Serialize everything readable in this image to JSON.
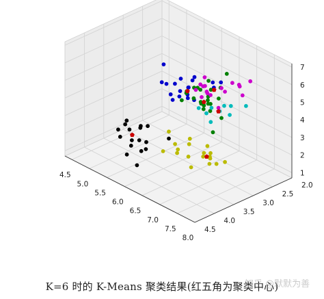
{
  "chart_data": {
    "type": "scatter",
    "projection": "3d",
    "title": "",
    "xlabel": "",
    "ylabel": "",
    "zlabel": "",
    "x_ticks": [
      "4.5",
      "5.0",
      "5.5",
      "6.0",
      "6.5",
      "7.0",
      "7.5",
      "8.0"
    ],
    "y_ticks": [
      "2.0",
      "2.5",
      "3.0",
      "3.5",
      "4.0",
      "4.5"
    ],
    "z_ticks": [
      "1",
      "2",
      "3",
      "4",
      "5",
      "6",
      "7"
    ],
    "xlim": [
      4.3,
      8.0
    ],
    "ylim": [
      2.0,
      4.5
    ],
    "zlim": [
      0.7,
      7.2
    ],
    "grid": true,
    "series": [
      {
        "color": "#000000",
        "points": [
          [
            4.4,
            3.0,
            1.3
          ],
          [
            4.6,
            3.4,
            1.4
          ],
          [
            4.7,
            3.2,
            1.3
          ],
          [
            4.8,
            3.0,
            1.4
          ],
          [
            4.9,
            3.1,
            1.5
          ],
          [
            5.0,
            3.4,
            1.5
          ],
          [
            5.0,
            3.0,
            1.6
          ],
          [
            5.1,
            3.5,
            1.4
          ],
          [
            5.2,
            3.4,
            1.4
          ],
          [
            5.4,
            3.9,
            1.3
          ],
          [
            5.4,
            3.4,
            1.5
          ],
          [
            5.5,
            3.5,
            1.3
          ],
          [
            5.7,
            3.8,
            1.7
          ],
          [
            5.8,
            4.0,
            1.2
          ],
          [
            5.1,
            3.8,
            1.9
          ],
          [
            4.8,
            3.4,
            1.9
          ],
          [
            5.3,
            3.7,
            1.5
          ],
          [
            5.6,
            3.0,
            1.5
          ]
        ]
      },
      {
        "color": "#0000cc",
        "points": [
          [
            4.9,
            2.5,
            4.5
          ],
          [
            5.0,
            2.3,
            3.3
          ],
          [
            5.1,
            2.5,
            3.0
          ],
          [
            5.2,
            2.7,
            3.9
          ],
          [
            5.5,
            2.4,
            3.7
          ],
          [
            5.5,
            2.3,
            4.0
          ],
          [
            5.6,
            2.9,
            3.6
          ],
          [
            5.7,
            2.6,
            3.5
          ],
          [
            5.8,
            2.7,
            4.1
          ],
          [
            6.0,
            2.2,
            4.0
          ],
          [
            6.1,
            2.8,
            4.0
          ],
          [
            5.6,
            2.5,
            3.9
          ],
          [
            5.8,
            2.7,
            3.9
          ],
          [
            5.7,
            2.8,
            4.1
          ],
          [
            5.5,
            2.6,
            4.4
          ],
          [
            6.0,
            2.7,
            5.1
          ],
          [
            5.4,
            3.0,
            4.5
          ],
          [
            6.2,
            2.2,
            4.5
          ],
          [
            5.9,
            3.0,
            4.2
          ],
          [
            6.3,
            2.5,
            4.9
          ]
        ]
      },
      {
        "color": "#bbbb00",
        "points": [
          [
            5.6,
            3.0,
            1.9
          ],
          [
            6.0,
            3.2,
            1.8
          ],
          [
            6.2,
            3.0,
            2.1
          ],
          [
            6.3,
            3.4,
            2.0
          ],
          [
            6.6,
            3.0,
            1.7
          ],
          [
            6.4,
            3.2,
            2.2
          ],
          [
            6.6,
            3.4,
            1.9
          ],
          [
            6.9,
            3.1,
            2.1
          ],
          [
            7.0,
            3.2,
            2.0
          ],
          [
            6.7,
            3.0,
            2.2
          ],
          [
            6.8,
            3.2,
            1.9
          ],
          [
            7.2,
            3.0,
            1.8
          ],
          [
            7.2,
            3.4,
            2.1
          ],
          [
            6.5,
            3.6,
            2.2
          ],
          [
            6.9,
            3.6,
            1.8
          ],
          [
            7.1,
            3.3,
            2.3
          ],
          [
            7.4,
            3.4,
            2.3
          ],
          [
            6.1,
            3.6,
            1.9
          ]
        ]
      },
      {
        "color": "#008000",
        "points": [
          [
            6.1,
            2.6,
            3.6
          ],
          [
            6.2,
            2.9,
            4.3
          ],
          [
            6.3,
            2.3,
            4.4
          ],
          [
            6.3,
            2.8,
            4.0
          ],
          [
            6.4,
            2.9,
            4.3
          ],
          [
            6.5,
            2.8,
            4.6
          ],
          [
            6.6,
            2.9,
            4.6
          ],
          [
            6.7,
            3.1,
            4.4
          ],
          [
            6.8,
            2.8,
            4.8
          ],
          [
            6.9,
            3.1,
            4.9
          ],
          [
            7.0,
            3.2,
            4.7
          ],
          [
            6.7,
            2.5,
            5.8
          ],
          [
            6.4,
            2.7,
            5.3
          ],
          [
            6.5,
            3.0,
            5.2
          ],
          [
            6.3,
            3.3,
            4.7
          ],
          [
            6.0,
            2.9,
            4.5
          ],
          [
            6.6,
            3.0,
            4.4
          ],
          [
            7.1,
            3.0,
            4.2
          ],
          [
            7.3,
            3.4,
            4.0
          ],
          [
            6.5,
            2.8,
            4.2
          ],
          [
            6.8,
            3.0,
            5.5
          ],
          [
            6.1,
            2.8,
            4.7
          ],
          [
            6.2,
            2.8,
            4.8
          ],
          [
            6.1,
            3.0,
            4.6
          ]
        ]
      },
      {
        "color": "#cc00cc",
        "points": [
          [
            6.3,
            2.7,
            4.9
          ],
          [
            6.4,
            2.8,
            5.6
          ],
          [
            6.5,
            3.0,
            5.5
          ],
          [
            6.7,
            3.0,
            5.2
          ],
          [
            6.8,
            3.2,
            5.9
          ],
          [
            6.9,
            3.1,
            5.4
          ],
          [
            7.2,
            3.0,
            5.8
          ],
          [
            7.2,
            3.6,
            6.1
          ],
          [
            7.4,
            2.8,
            6.1
          ],
          [
            7.6,
            3.0,
            6.6
          ],
          [
            7.7,
            2.8,
            6.7
          ],
          [
            7.9,
            3.8,
            6.4
          ],
          [
            7.7,
            3.0,
            6.1
          ],
          [
            7.3,
            2.9,
            6.3
          ],
          [
            6.9,
            3.2,
            5.7
          ],
          [
            7.1,
            3.0,
            5.9
          ],
          [
            6.7,
            3.3,
            5.7
          ]
        ]
      },
      {
        "color": "#00bbbb",
        "points": [
          [
            7.4,
            3.2,
            5.4
          ],
          [
            7.6,
            3.5,
            5.6
          ],
          [
            7.7,
            3.3,
            5.8
          ],
          [
            7.8,
            3.0,
            5.6
          ],
          [
            8.0,
            3.6,
            5.9
          ],
          [
            7.9,
            4.0,
            5.8
          ],
          [
            8.0,
            4.2,
            6.6
          ],
          [
            8.0,
            4.4,
            7.1
          ],
          [
            7.7,
            3.8,
            6.2
          ]
        ]
      }
    ],
    "centers": {
      "color": "#cc0000",
      "marker": "pentagon",
      "points": [
        [
          5.0,
          3.4,
          1.5
        ],
        [
          5.8,
          2.7,
          4.1
        ],
        [
          6.9,
          3.2,
          2.0
        ],
        [
          6.6,
          3.0,
          4.6
        ],
        [
          7.0,
          3.1,
          5.8
        ],
        [
          7.9,
          3.8,
          6.2
        ]
      ]
    }
  },
  "caption": "K=6 时的 K-Means 聚类结果(红五角为聚类中心)",
  "watermark": "知乎 @默默为善"
}
